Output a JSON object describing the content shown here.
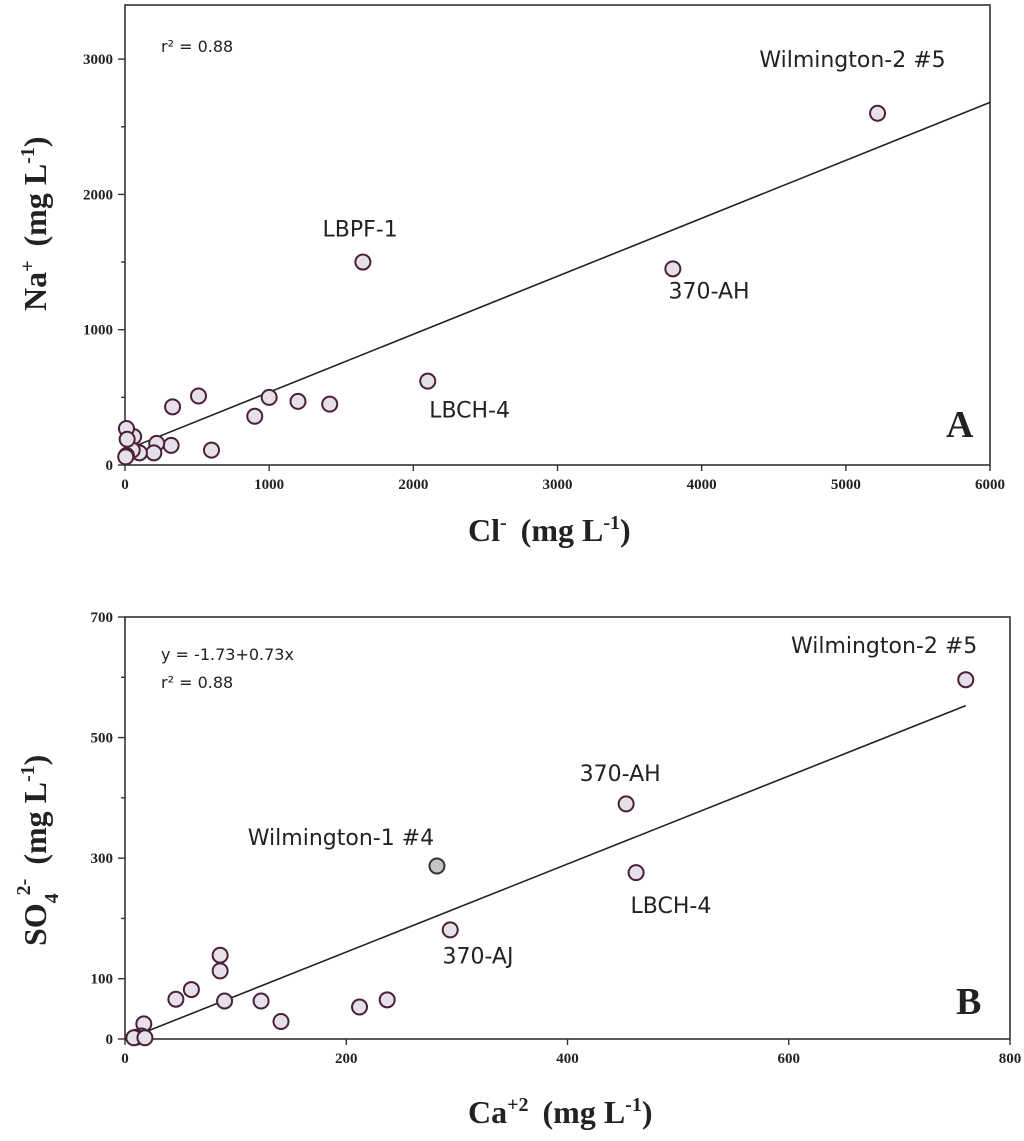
{
  "chart_data": [
    {
      "type": "scatter",
      "panel": "A",
      "xlabel": {
        "base": "Cl",
        "sup": "-",
        "units_pre": "(mg L",
        "units_sup": "-1",
        "units_post": ")"
      },
      "ylabel": {
        "base": "Na",
        "sup": "+",
        "units_pre": "(mg L",
        "units_sup": "-1",
        "units_post": ")"
      },
      "xlim": [
        0,
        6000
      ],
      "ylim": [
        0,
        3400
      ],
      "xticks": [
        0,
        1000,
        2000,
        3000,
        4000,
        5000,
        6000
      ],
      "xtick_labels": [
        "0",
        "1000",
        "2000",
        "3000",
        "4000",
        "5000",
        "6000"
      ],
      "yticks": [
        0,
        1000,
        2000,
        3000
      ],
      "ytick_labels": [
        "0",
        "1000",
        "2000",
        "3000"
      ],
      "yminor": [
        500,
        1500,
        2500
      ],
      "stats": [
        "r² = 0.88"
      ],
      "fit_line": {
        "x": [
          0,
          6000
        ],
        "y": [
          110,
          2680
        ]
      },
      "points": [
        {
          "x": 5220,
          "y": 2600
        },
        {
          "x": 1650,
          "y": 1500
        },
        {
          "x": 3800,
          "y": 1450
        },
        {
          "x": 2100,
          "y": 620
        },
        {
          "x": 1000,
          "y": 500
        },
        {
          "x": 510,
          "y": 510
        },
        {
          "x": 330,
          "y": 430
        },
        {
          "x": 1200,
          "y": 470
        },
        {
          "x": 1420,
          "y": 450
        },
        {
          "x": 900,
          "y": 360
        },
        {
          "x": 600,
          "y": 110
        },
        {
          "x": 320,
          "y": 145
        },
        {
          "x": 220,
          "y": 160
        },
        {
          "x": 200,
          "y": 90
        },
        {
          "x": 100,
          "y": 90
        },
        {
          "x": 60,
          "y": 210
        },
        {
          "x": 50,
          "y": 110
        },
        {
          "x": 10,
          "y": 270
        },
        {
          "x": 15,
          "y": 190
        },
        {
          "x": 10,
          "y": 70
        },
        {
          "x": 5,
          "y": 60
        }
      ],
      "annotations": [
        {
          "text": "Wilmington-2 #5",
          "x": 4400,
          "y": 2940
        },
        {
          "text": "LBPF-1",
          "x": 1370,
          "y": 1690
        },
        {
          "text": "370-AH",
          "x": 3770,
          "y": 1230
        },
        {
          "text": "LBCH-4",
          "x": 2110,
          "y": 350
        }
      ]
    },
    {
      "type": "scatter",
      "panel": "B",
      "xlabel": {
        "base": "Ca",
        "sup": "+2",
        "units_pre": "(mg L",
        "units_sup": "-1",
        "units_post": ")"
      },
      "ylabel": {
        "base": "SO",
        "sub": "4",
        "sup": "2-",
        "units_pre": "(mg L",
        "units_sup": "-1",
        "units_post": ")"
      },
      "xlim": [
        0,
        800
      ],
      "ylim": [
        0,
        700
      ],
      "xticks": [
        0,
        200,
        400,
        600,
        800
      ],
      "xtick_labels": [
        "0",
        "200",
        "400",
        "600",
        "800"
      ],
      "yticks": [
        0,
        100,
        300,
        500,
        700
      ],
      "ytick_labels": [
        "0",
        "100",
        "300",
        "500",
        "700"
      ],
      "yminor": [
        200,
        400,
        600
      ],
      "stats": [
        "y = -1.73+0.73x",
        "r² = 0.88"
      ],
      "fit_line": {
        "x": [
          0,
          760
        ],
        "y": [
          -1.73,
          553
        ]
      },
      "points": [
        {
          "x": 760,
          "y": 596
        },
        {
          "x": 453,
          "y": 390
        },
        {
          "x": 462,
          "y": 276
        },
        {
          "x": 282,
          "y": 287,
          "highlight": true
        },
        {
          "x": 294,
          "y": 181
        },
        {
          "x": 86,
          "y": 139
        },
        {
          "x": 86,
          "y": 113
        },
        {
          "x": 60,
          "y": 82
        },
        {
          "x": 46,
          "y": 66
        },
        {
          "x": 90,
          "y": 63
        },
        {
          "x": 123,
          "y": 63
        },
        {
          "x": 141,
          "y": 29
        },
        {
          "x": 212,
          "y": 53
        },
        {
          "x": 237,
          "y": 65
        },
        {
          "x": 17,
          "y": 25
        },
        {
          "x": 15,
          "y": 5
        },
        {
          "x": 10,
          "y": 3
        },
        {
          "x": 8,
          "y": 2
        },
        {
          "x": 18,
          "y": 2
        }
      ],
      "annotations": [
        {
          "text": "Wilmington-2 #5",
          "x": 602,
          "y": 640
        },
        {
          "text": "370-AH",
          "x": 411,
          "y": 428
        },
        {
          "text": "Wilmington-1 #4",
          "x": 111,
          "y": 322
        },
        {
          "text": "LBCH-4",
          "x": 457,
          "y": 209
        },
        {
          "text": "370-AJ",
          "x": 287,
          "y": 125
        }
      ]
    }
  ]
}
